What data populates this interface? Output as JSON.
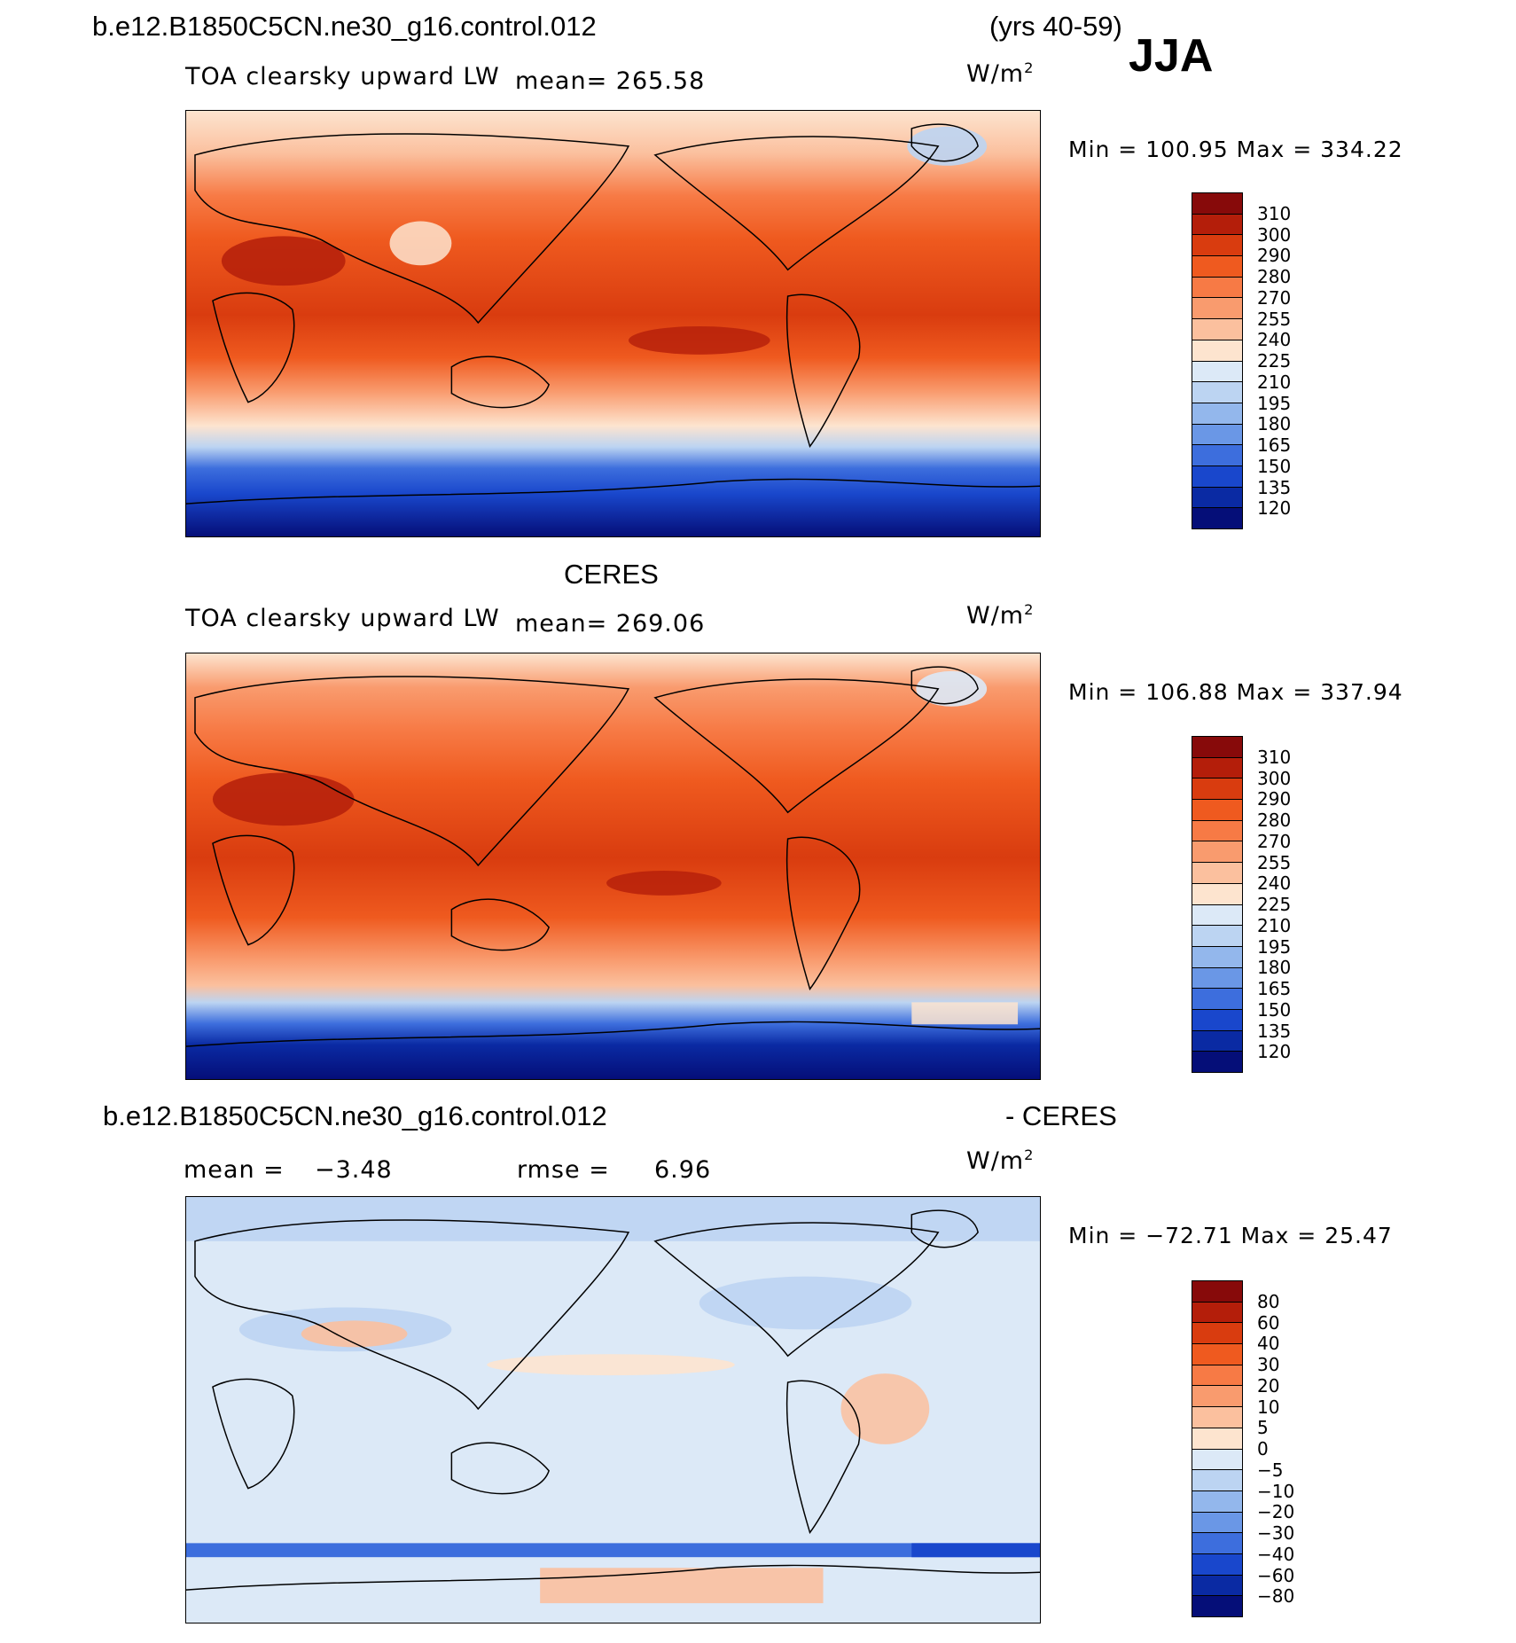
{
  "header": {
    "case_name": "b.e12.B1850C5CN.ne30_g16.control.012",
    "years": "(yrs 40-59)",
    "season": "JJA"
  },
  "panels": [
    {
      "id": "model",
      "title": "",
      "variable": "TOA clearsky upward LW",
      "mean_text": "mean= 265.58",
      "units": "W/m",
      "units_sup": "2",
      "minmax": "Min = 100.95 Max = 334.22",
      "colorbar": {
        "levels": [
          "310",
          "300",
          "290",
          "280",
          "270",
          "255",
          "240",
          "225",
          "210",
          "195",
          "180",
          "165",
          "150",
          "135",
          "120"
        ],
        "colors": [
          "#870a0a",
          "#b41e0a",
          "#d93c0f",
          "#ef5a1f",
          "#f77a45",
          "#f99b6e",
          "#fbc09e",
          "#fde4cf",
          "#dce9f7",
          "#bcd4f2",
          "#93b7ec",
          "#6a97e6",
          "#3d6edd",
          "#1947cc",
          "#0a2aa3",
          "#050e78"
        ]
      },
      "land_labels": [
        "Africa",
        "Eurasia",
        "Australia",
        "North America",
        "South America",
        "Greenland",
        "Antarctica"
      ]
    },
    {
      "id": "obs",
      "title": "CERES",
      "variable": "TOA clearsky upward LW",
      "mean_text": "mean= 269.06",
      "units": "W/m",
      "units_sup": "2",
      "minmax": "Min = 106.88 Max = 337.94",
      "colorbar": {
        "levels": [
          "310",
          "300",
          "290",
          "280",
          "270",
          "255",
          "240",
          "225",
          "210",
          "195",
          "180",
          "165",
          "150",
          "135",
          "120"
        ],
        "colors": [
          "#870a0a",
          "#b41e0a",
          "#d93c0f",
          "#ef5a1f",
          "#f77a45",
          "#f99b6e",
          "#fbc09e",
          "#fde4cf",
          "#dce9f7",
          "#bcd4f2",
          "#93b7ec",
          "#6a97e6",
          "#3d6edd",
          "#1947cc",
          "#0a2aa3",
          "#050e78"
        ]
      }
    },
    {
      "id": "diff",
      "title_left": "b.e12.B1850C5CN.ne30_g16.control.012",
      "title_right": "- CERES",
      "mean_label": "mean =",
      "mean_value": "-3.48",
      "rmse_label": "rmse =",
      "rmse_value": "6.96",
      "units": "W/m",
      "units_sup": "2",
      "minmax": "Min = -72.71 Max =  25.47",
      "colorbar": {
        "levels": [
          "80",
          "60",
          "40",
          "30",
          "20",
          "10",
          "5",
          "0",
          "-5",
          "-10",
          "-20",
          "-30",
          "-40",
          "-60",
          "-80"
        ],
        "colors": [
          "#870a0a",
          "#b41e0a",
          "#d93c0f",
          "#ef5a1f",
          "#f77a45",
          "#f99b6e",
          "#fbc09e",
          "#fde4cf",
          "#dce9f7",
          "#bcd4f2",
          "#93b7ec",
          "#6a97e6",
          "#3d6edd",
          "#1947cc",
          "#0a2aa3",
          "#050e78"
        ]
      }
    }
  ]
}
